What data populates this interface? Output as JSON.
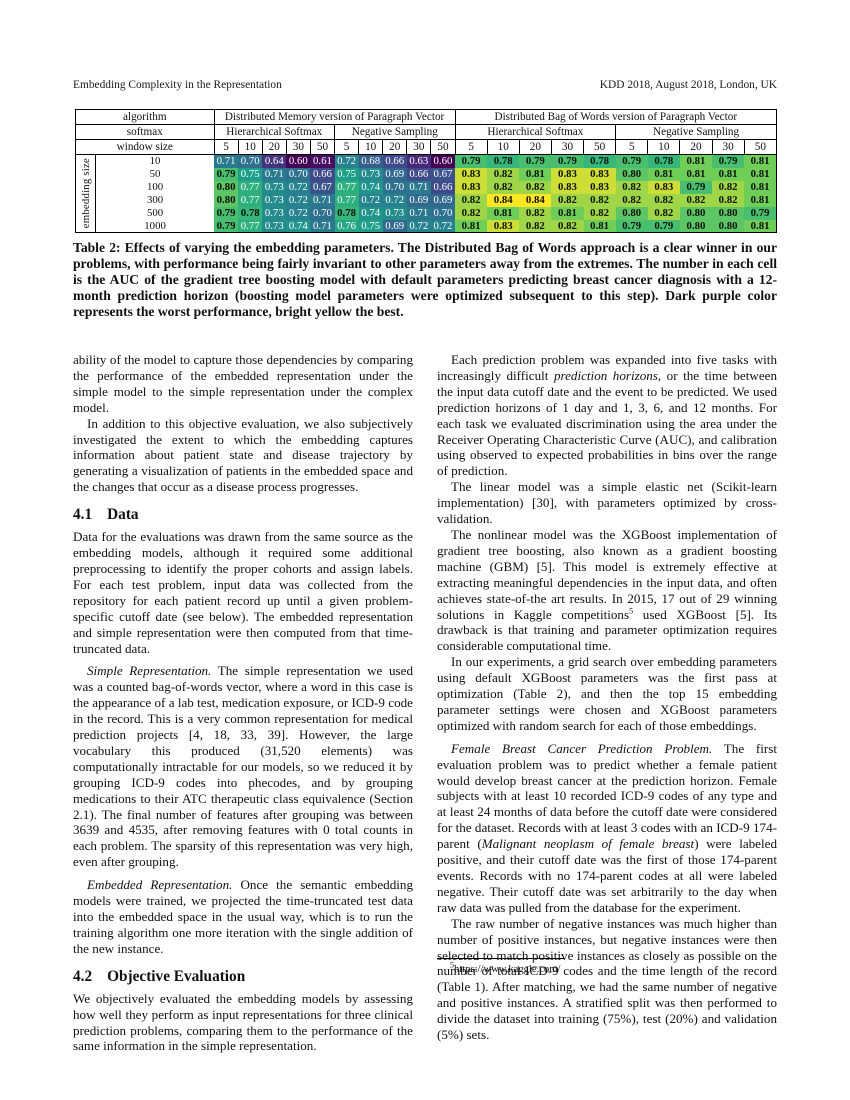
{
  "running_header": {
    "left": "Embedding Complexity in the Representation",
    "right": "KDD 2018, August 2018, London, UK"
  },
  "chart_data": {
    "type": "heatmap",
    "table_name": "Table 2",
    "header": {
      "algorithm_label": "algorithm",
      "algorithm_groups": [
        "Distributed Memory version of Paragraph Vector",
        "Distributed Bag of Words version of Paragraph Vector"
      ],
      "softmax_label": "softmax",
      "softmax_groups": [
        "Hierarchical Softmax",
        "Negative Sampling",
        "Hierarchical Softmax",
        "Negative Sampling"
      ],
      "window_label": "window size",
      "window_sizes": [
        5,
        10,
        20,
        30,
        50,
        5,
        10,
        20,
        30,
        50,
        5,
        10,
        20,
        30,
        50,
        5,
        10,
        20,
        30,
        50
      ]
    },
    "row_axis_label": "embedding size",
    "row_labels": [
      10,
      50,
      100,
      300,
      500,
      1000
    ],
    "values": [
      [
        0.71,
        0.7,
        0.64,
        0.6,
        0.61,
        0.72,
        0.68,
        0.66,
        0.63,
        0.6,
        0.79,
        0.78,
        0.79,
        0.79,
        0.78,
        0.79,
        0.78,
        0.81,
        0.79,
        0.81
      ],
      [
        0.79,
        0.75,
        0.71,
        0.7,
        0.66,
        0.75,
        0.73,
        0.69,
        0.66,
        0.67,
        0.83,
        0.82,
        0.81,
        0.83,
        0.83,
        0.8,
        0.81,
        0.81,
        0.81,
        0.81
      ],
      [
        0.8,
        0.77,
        0.73,
        0.72,
        0.67,
        0.77,
        0.74,
        0.7,
        0.71,
        0.66,
        0.83,
        0.82,
        0.82,
        0.83,
        0.83,
        0.82,
        0.83,
        0.79,
        0.82,
        0.81
      ],
      [
        0.8,
        0.77,
        0.73,
        0.72,
        0.71,
        0.77,
        0.72,
        0.72,
        0.69,
        0.69,
        0.82,
        0.84,
        0.84,
        0.82,
        0.82,
        0.82,
        0.82,
        0.82,
        0.82,
        0.81
      ],
      [
        0.79,
        0.78,
        0.73,
        0.72,
        0.7,
        0.78,
        0.74,
        0.73,
        0.71,
        0.7,
        0.82,
        0.81,
        0.82,
        0.81,
        0.82,
        0.8,
        0.82,
        0.8,
        0.8,
        0.79
      ],
      [
        0.79,
        0.77,
        0.73,
        0.74,
        0.71,
        0.76,
        0.75,
        0.69,
        0.72,
        0.72,
        0.81,
        0.83,
        0.82,
        0.82,
        0.81,
        0.79,
        0.79,
        0.8,
        0.8,
        0.81
      ]
    ],
    "colormap": "viridis",
    "colormap_stops": [
      "#440154",
      "#482878",
      "#3e4a89",
      "#31688e",
      "#26828e",
      "#1f9e89",
      "#35b779",
      "#6ece58",
      "#fde725"
    ],
    "vmin": 0.6,
    "vmax": 0.84,
    "dark_text_threshold": 0.78,
    "dark_text_color": "#101010",
    "light_text_color": "#ffffff"
  },
  "caption": {
    "text": "Table 2: Effects of varying the embedding parameters. The Distributed Bag of Words approach is a clear winner in our problems, with performance being fairly invariant to other parameters away from the extremes. The number in each cell is the AUC of the gradient tree boosting model with default parameters predicting breast cancer diagnosis with a 12-month prediction horizon (boosting model parameters were optimized subsequent to this step). Dark purple color represents the worst performance, bright yellow the best."
  },
  "columns": {
    "left": {
      "blocks": [
        {
          "type": "para",
          "indent": false,
          "segments": [
            {
              "t": "ability of the model to capture those dependencies by comparing the performance of the embedded representation under the simple model to the simple representation under the complex model."
            }
          ]
        },
        {
          "type": "para",
          "indent": true,
          "segments": [
            {
              "t": "In addition to this objective evaluation, we also subjectively investigated the extent to which the embedding captures information about patient state and disease trajectory by generating a visualization of patients in the embedded space and the changes that occur as a disease process progresses."
            }
          ]
        },
        {
          "type": "heading",
          "num": "4.1",
          "title": "Data"
        },
        {
          "type": "para",
          "indent": false,
          "segments": [
            {
              "t": "Data for the evaluations was drawn from the same source as the embedding models, although it required some additional preprocessing to identify the proper cohorts and assign labels. For each test problem, input data was collected from the repository for each patient record up until a given problem-specific cutoff date (see below). The embedded representation and simple representation were then computed from that time-truncated data."
            }
          ]
        },
        {
          "type": "para",
          "lead": true,
          "segments": [
            {
              "t": "Simple Representation.",
              "i": true
            },
            {
              "t": " The simple representation we used was a counted bag-of-words vector, where a word in this case is the appearance of a lab test, medication exposure, or ICD-9 code in the record. This is a very common representation for medical prediction projects [4, 18, 33, 39]. However, the large vocabulary this produced (31,520 elements) was computationally intractable for our models, so we reduced it by grouping ICD-9 codes into phecodes, and by grouping medications to their ATC therapeutic class equivalence (Section 2.1). The final number of features after grouping was between 3639 and 4535, after removing features with 0 total counts in each problem. The sparsity of this representation was very high, even after grouping."
            }
          ]
        },
        {
          "type": "para",
          "lead": true,
          "segments": [
            {
              "t": "Embedded Representation.",
              "i": true
            },
            {
              "t": " Once the semantic embedding models were trained, we projected the time-truncated test data into the embedded space in the usual way, which is to run the training algorithm one more iteration with the single addition of the new instance."
            }
          ]
        },
        {
          "type": "heading",
          "num": "4.2",
          "title": "Objective Evaluation"
        },
        {
          "type": "para",
          "indent": false,
          "segments": [
            {
              "t": "We objectively evaluated the embedding models by assessing how well they perform as input representations for three clinical prediction problems, comparing them to the performance of the same information in the simple representation."
            }
          ]
        }
      ]
    },
    "right": {
      "blocks": [
        {
          "type": "para",
          "indent": true,
          "segments": [
            {
              "t": "Each prediction problem was expanded into five tasks with increasingly difficult "
            },
            {
              "t": "prediction horizons",
              "i": true
            },
            {
              "t": ", or the time between the input data cutoff date and the event to be predicted. We used prediction horizons of 1 day and 1, 3, 6, and 12 months. For each task we evaluated discrimination using the area under the Receiver Operating Characteristic Curve (AUC), and calibration using observed to expected probabilities in bins over the range of prediction."
            }
          ]
        },
        {
          "type": "para",
          "indent": true,
          "segments": [
            {
              "t": "The linear model was a simple elastic net (Scikit-learn implementation) [30], with parameters optimized by cross-validation."
            }
          ]
        },
        {
          "type": "para",
          "indent": true,
          "segments": [
            {
              "t": "The nonlinear model was the XGBoost implementation of gradient tree boosting, also known as a gradient boosting machine (GBM) [5]. This model is extremely effective at extracting meaningful dependencies in the input data, and often achieves state-of-the art results. In 2015, 17 out of 29 winning solutions in Kaggle competitions"
            },
            {
              "t": "5",
              "sup": true
            },
            {
              "t": " used XGBoost [5]. Its drawback is that training and parameter optimization requires considerable computational time."
            }
          ]
        },
        {
          "type": "para",
          "indent": true,
          "segments": [
            {
              "t": "In our experiments, a grid search over embedding parameters using default XGBoost parameters was the first pass at optimization (Table 2), and then the top 15 embedding parameter settings were chosen and XGBoost parameters optimized with random search for each of those embeddings."
            }
          ]
        },
        {
          "type": "para",
          "lead": true,
          "segments": [
            {
              "t": "Female Breast Cancer Prediction Problem.",
              "i": true
            },
            {
              "t": " The first evaluation problem was to predict whether a female patient would develop breast cancer at the prediction horizon. Female subjects with at least 10 recorded ICD-9 codes of any type and at least 24 months of data before the cutoff date were considered for the dataset. Records with at least 3 codes with an ICD-9 174-parent ("
            },
            {
              "t": "Malignant neoplasm of female breast",
              "i": true
            },
            {
              "t": ") were labeled positive, and their cutoff date was the first of those 174-parent events. Records with no 174-parent codes at all were labeled negative. Their cutoff date was set arbitrarily to the day when raw data was pulled from the database for the experiment."
            }
          ]
        },
        {
          "type": "para",
          "indent": true,
          "segments": [
            {
              "t": "The raw number of negative instances was much higher than number of positive instances, but negative instances were then selected to match positive instances as closely as possible on the number of total ICD-9 codes and the time length of the record (Table 1). After matching, we had the same number of negative and positive instances. A stratified split was then performed to divide the dataset into training (75%), test (20%) and validation (5%) sets."
            }
          ]
        }
      ]
    }
  },
  "footnote": {
    "marker": "5",
    "text": "https://www.kaggle.com/"
  }
}
